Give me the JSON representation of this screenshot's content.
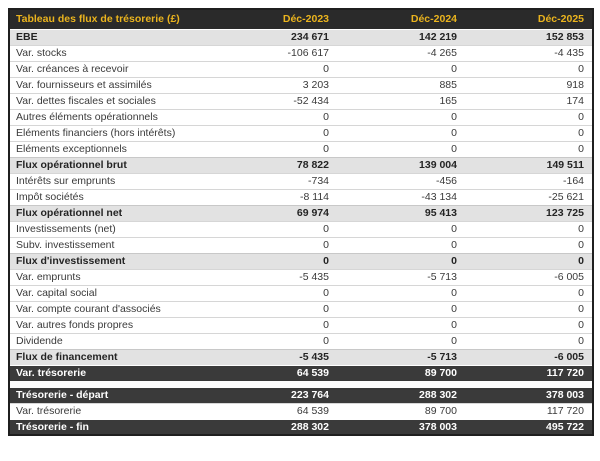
{
  "table": {
    "title": "Tableau des flux de trésorerie (£)",
    "columns": [
      "Déc-2023",
      "Déc-2024",
      "Déc-2025"
    ],
    "colors": {
      "header_bg": "#2a2a2a",
      "header_text": "#ebb41e",
      "subtotal_bg": "#e2e2e2",
      "dark_row_bg": "#3a3a3a",
      "row_border": "#d6d6d6"
    },
    "rows": [
      {
        "label": "EBE",
        "values": [
          "234 671",
          "142 219",
          "152 853"
        ],
        "style": "subtotal"
      },
      {
        "label": "Var. stocks",
        "values": [
          "-106 617",
          "-4 265",
          "-4 435"
        ],
        "style": "normal"
      },
      {
        "label": "Var. créances à recevoir",
        "values": [
          "0",
          "0",
          "0"
        ],
        "style": "normal"
      },
      {
        "label": "Var. fournisseurs et assimilés",
        "values": [
          "3 203",
          "885",
          "918"
        ],
        "style": "normal"
      },
      {
        "label": "Var. dettes fiscales et sociales",
        "values": [
          "-52 434",
          "165",
          "174"
        ],
        "style": "normal"
      },
      {
        "label": "Autres éléments opérationnels",
        "values": [
          "0",
          "0",
          "0"
        ],
        "style": "normal"
      },
      {
        "label": "Eléments financiers (hors intérêts)",
        "values": [
          "0",
          "0",
          "0"
        ],
        "style": "normal"
      },
      {
        "label": "Eléments exceptionnels",
        "values": [
          "0",
          "0",
          "0"
        ],
        "style": "normal"
      },
      {
        "label": "Flux opérationnel brut",
        "values": [
          "78 822",
          "139 004",
          "149 511"
        ],
        "style": "subtotal"
      },
      {
        "label": "Intérêts sur emprunts",
        "values": [
          "-734",
          "-456",
          "-164"
        ],
        "style": "normal"
      },
      {
        "label": "Impôt sociétés",
        "values": [
          "-8 114",
          "-43 134",
          "-25 621"
        ],
        "style": "normal"
      },
      {
        "label": "Flux opérationnel net",
        "values": [
          "69 974",
          "95 413",
          "123 725"
        ],
        "style": "subtotal"
      },
      {
        "label": "Investissements (net)",
        "values": [
          "0",
          "0",
          "0"
        ],
        "style": "normal"
      },
      {
        "label": "Subv. investissement",
        "values": [
          "0",
          "0",
          "0"
        ],
        "style": "normal"
      },
      {
        "label": "Flux d'investissement",
        "values": [
          "0",
          "0",
          "0"
        ],
        "style": "subtotal"
      },
      {
        "label": "Var. emprunts",
        "values": [
          "-5 435",
          "-5 713",
          "-6 005"
        ],
        "style": "normal"
      },
      {
        "label": "Var. capital social",
        "values": [
          "0",
          "0",
          "0"
        ],
        "style": "normal"
      },
      {
        "label": "Var. compte courant d'associés",
        "values": [
          "0",
          "0",
          "0"
        ],
        "style": "normal"
      },
      {
        "label": "Var. autres fonds propres",
        "values": [
          "0",
          "0",
          "0"
        ],
        "style": "normal"
      },
      {
        "label": "Dividende",
        "values": [
          "0",
          "0",
          "0"
        ],
        "style": "normal"
      },
      {
        "label": "Flux de financement",
        "values": [
          "-5 435",
          "-5 713",
          "-6 005"
        ],
        "style": "subtotal"
      },
      {
        "label": "Var. trésorerie",
        "values": [
          "64 539",
          "89 700",
          "117 720"
        ],
        "style": "dark"
      },
      {
        "style": "spacer"
      },
      {
        "label": "Trésorerie - départ",
        "values": [
          "223 764",
          "288 302",
          "378 003"
        ],
        "style": "dark"
      },
      {
        "label": "Var. trésorerie",
        "values": [
          "64 539",
          "89 700",
          "117 720"
        ],
        "style": "normal"
      },
      {
        "label": "Trésorerie - fin",
        "values": [
          "288 302",
          "378 003",
          "495 722"
        ],
        "style": "dark"
      }
    ]
  }
}
